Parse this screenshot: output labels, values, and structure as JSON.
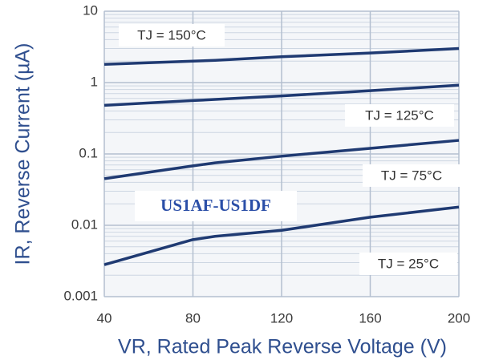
{
  "chart_data": {
    "type": "line",
    "xlabel": "VR, Rated  Peak Reverse Voltage (V)",
    "ylabel": "IR, Reverse Current (µA)",
    "annotation": "US1AF-US1DF",
    "x": [
      40,
      80,
      90,
      120,
      160,
      200
    ],
    "series": [
      {
        "name": "TJ = 150°C",
        "color": "#1f3a72",
        "values": [
          1.8,
          2.0,
          2.05,
          2.3,
          2.6,
          3.0
        ]
      },
      {
        "name": "TJ = 125°C",
        "color": "#1f3a72",
        "values": [
          0.48,
          0.56,
          0.58,
          0.65,
          0.77,
          0.92
        ]
      },
      {
        "name": "TJ = 75°C",
        "color": "#1f3a72",
        "values": [
          0.045,
          0.068,
          0.075,
          0.093,
          0.12,
          0.155
        ]
      },
      {
        "name": "TJ = 25°C",
        "color": "#1f3a72",
        "values": [
          0.0028,
          0.0063,
          0.007,
          0.0085,
          0.013,
          0.018
        ]
      }
    ],
    "xlim": [
      40,
      200
    ],
    "xticks": [
      40,
      80,
      120,
      160,
      200
    ],
    "ylim": [
      0.001,
      10
    ],
    "yticks": [
      10,
      1,
      0.1,
      0.01,
      0.001
    ],
    "log_y": true,
    "grid": true
  }
}
